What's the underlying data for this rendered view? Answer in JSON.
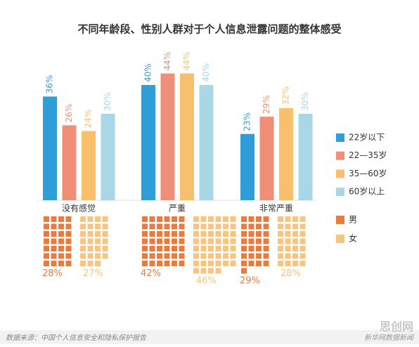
{
  "chart_data": {
    "type": "bar",
    "title": "不同年龄段、性别人群对于个人信息泄露问题的整体感受",
    "categories": [
      "没有感觉",
      "严重",
      "非常严重"
    ],
    "series": [
      {
        "name": "22岁以下",
        "color": "#2f9ed8",
        "values": [
          36,
          40,
          23
        ],
        "value_labels": [
          "36%",
          "40%",
          "23%"
        ]
      },
      {
        "name": "22—35岁",
        "color": "#f08f78",
        "values": [
          26,
          44,
          29
        ],
        "value_labels": [
          "26%",
          "44%",
          "29%"
        ]
      },
      {
        "name": "35—60岁",
        "color": "#f8bf6c",
        "values": [
          24,
          44,
          32
        ],
        "value_labels": [
          "24%",
          "44%",
          "32%"
        ]
      },
      {
        "name": "60岁以上",
        "color": "#a9d7e5",
        "values": [
          30,
          40,
          30
        ],
        "value_labels": [
          "30%",
          "40%",
          "30%"
        ]
      }
    ],
    "gender": {
      "type": "waffle",
      "series": [
        {
          "name": "男",
          "color": "#ec7a3d",
          "values": [
            28,
            42,
            29
          ],
          "value_labels": [
            "28%",
            "42%",
            "29%"
          ]
        },
        {
          "name": "女",
          "color": "#f9c47e",
          "values": [
            27,
            46,
            28
          ],
          "value_labels": [
            "27%",
            "46%",
            "28%"
          ]
        }
      ]
    },
    "source": "数据来源：中国个人信息安全和隐私保护报告",
    "credit": "新华网数据新闻",
    "watermark": "思创网"
  }
}
